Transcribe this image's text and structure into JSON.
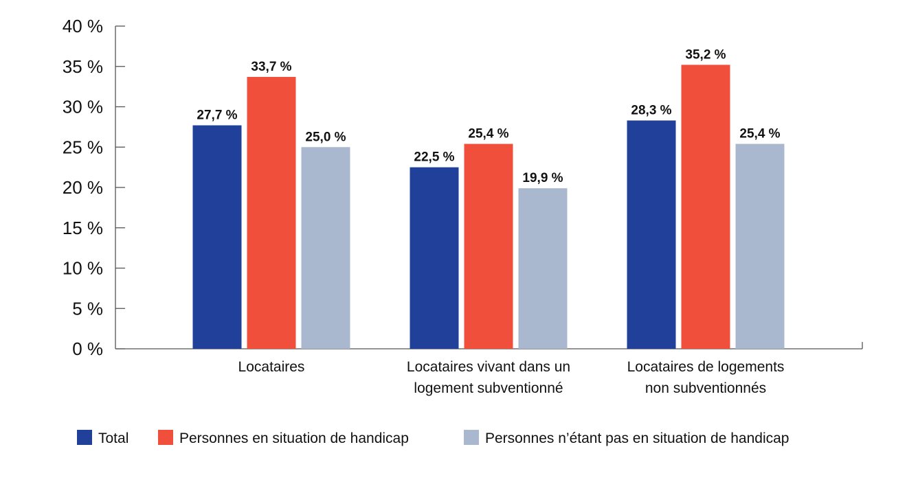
{
  "chart_data": {
    "type": "bar",
    "title": "",
    "xlabel": "",
    "ylabel": "",
    "ylim": [
      0,
      40
    ],
    "yticks": [
      0,
      5,
      10,
      15,
      20,
      25,
      30,
      35,
      40
    ],
    "tick_suffix": " %",
    "categories": [
      [
        "Locataires"
      ],
      [
        "Locataires vivant dans un",
        "logement subventionné"
      ],
      [
        "Locataires de logements",
        "non subventionnés"
      ]
    ],
    "series": [
      {
        "name": "Total",
        "color": "#21409a",
        "values": [
          27.7,
          22.5,
          28.3
        ],
        "labels": [
          "27,7 %",
          "22,5 %",
          "28,3 %"
        ]
      },
      {
        "name": "Personnes en situation de handicap",
        "color": "#ef4f3b",
        "values": [
          33.7,
          25.4,
          35.2
        ],
        "labels": [
          "33,7 %",
          "25,4 %",
          "35,2 %"
        ]
      },
      {
        "name": "Personnes n’étant pas en situation de handicap",
        "color": "#aab8cf",
        "values": [
          25.0,
          19.9,
          25.4
        ],
        "labels": [
          "25,0 %",
          "19,9 %",
          "25,4 %"
        ]
      }
    ],
    "grid": false,
    "legend_position": "bottom"
  }
}
